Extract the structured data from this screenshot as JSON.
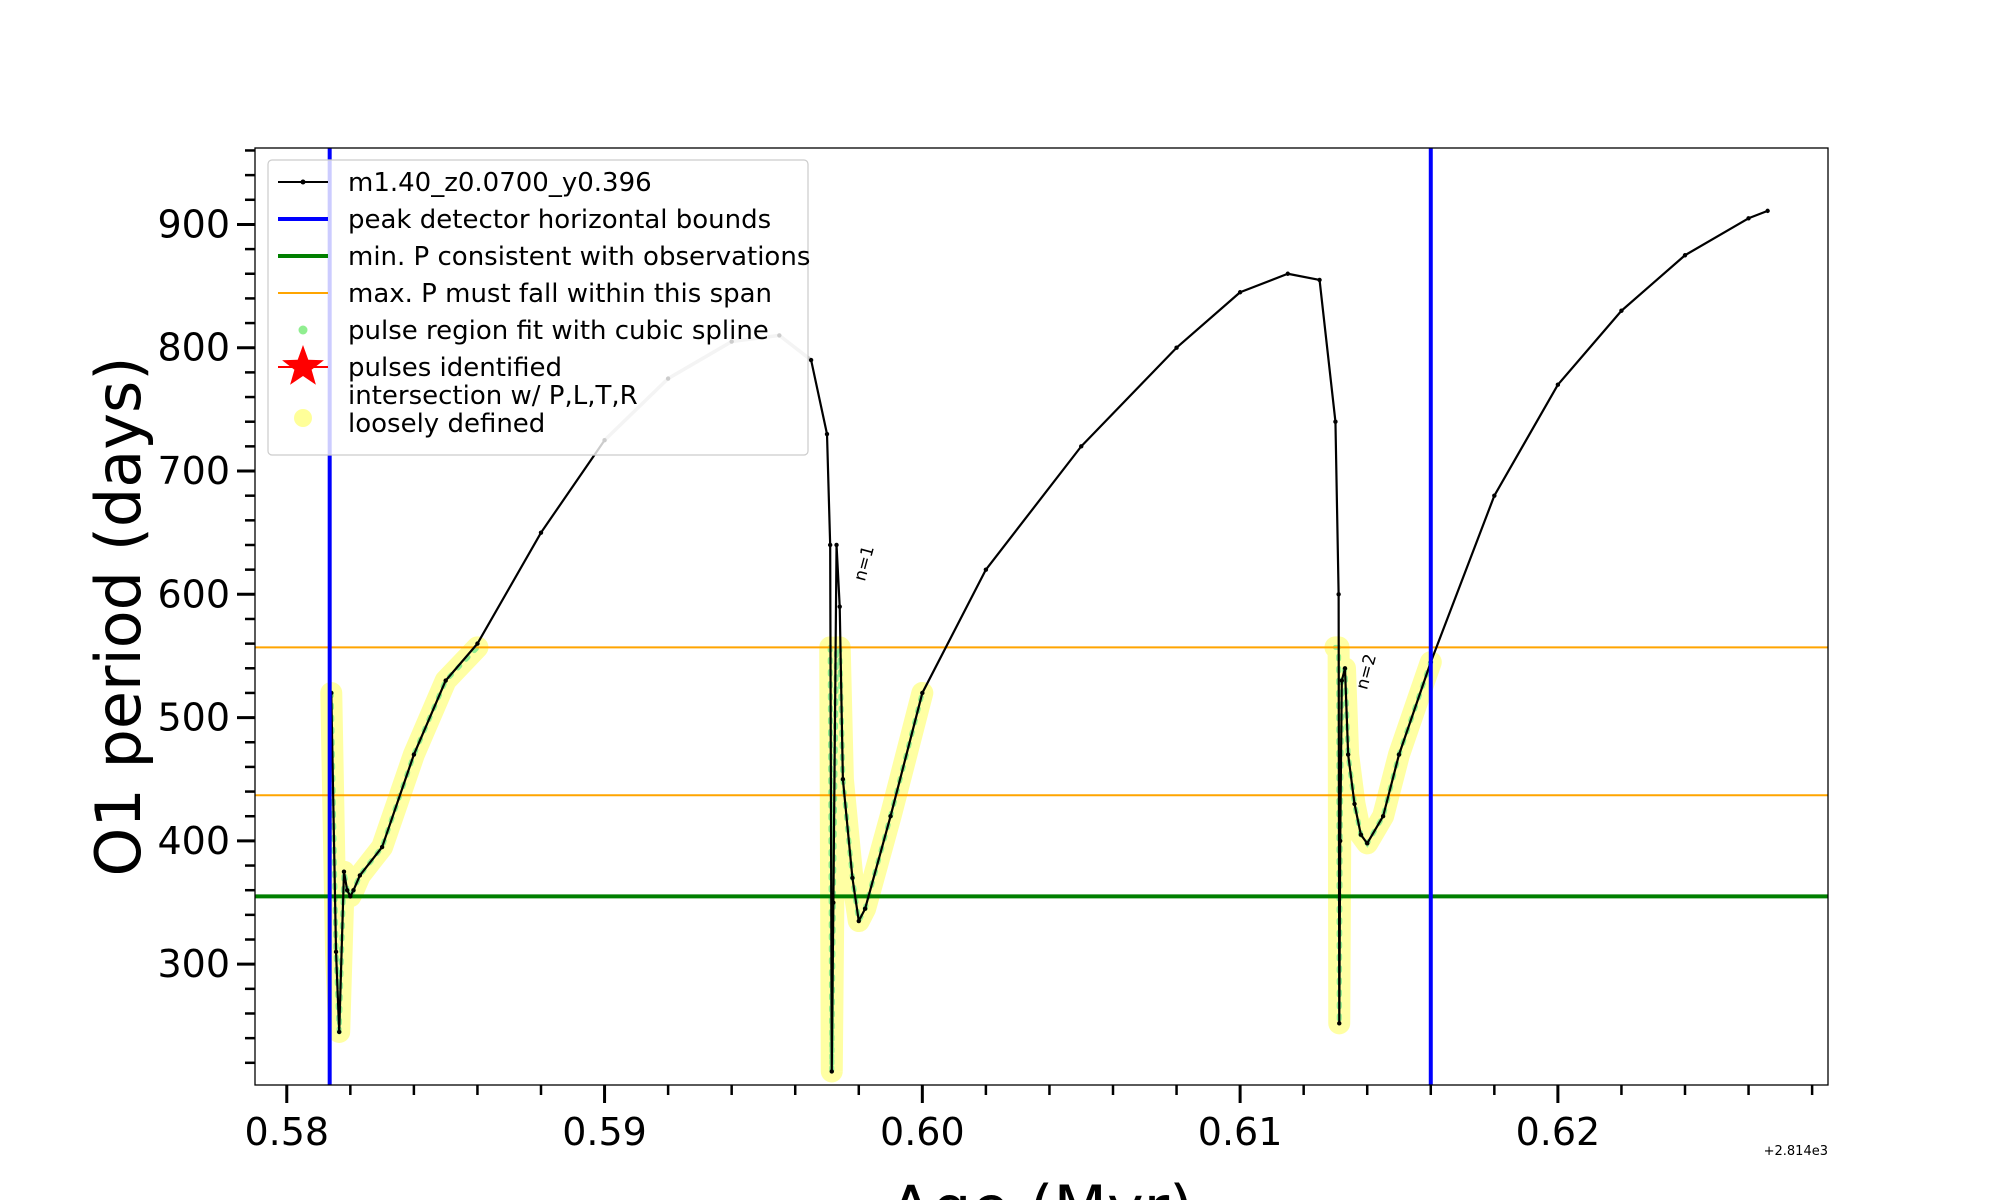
{
  "chart_data": {
    "type": "line",
    "xlabel": "Age (Myr)",
    "ylabel": "O1 period (days)",
    "xlim": [
      0.579,
      0.6285
    ],
    "ylim": [
      202,
      962
    ],
    "x_ticks": [
      0.58,
      0.59,
      0.6,
      0.61,
      0.62
    ],
    "x_tick_labels": [
      "0.58",
      "0.59",
      "0.60",
      "0.61",
      "0.62"
    ],
    "y_ticks": [
      300,
      400,
      500,
      600,
      700,
      800,
      900
    ],
    "y_tick_labels": [
      "300",
      "400",
      "500",
      "600",
      "700",
      "800",
      "900"
    ],
    "x_offset_label": "+2.814e3",
    "colors": {
      "track": "#000000",
      "track_faded": "#c8c8c8",
      "bounds": "#0000ff",
      "min_period": "#007f00",
      "span": "#ffa500",
      "spline": "#90ee90",
      "intersection": "#ffff99",
      "star": "#ff0000"
    },
    "series": [
      {
        "name": "m1.40_z0.0700_y0.396",
        "x": [
          0.5814,
          0.58155,
          0.58165,
          0.5818,
          0.5819,
          0.582,
          0.5821,
          0.5823,
          0.583,
          0.584,
          0.585,
          0.586,
          0.588,
          0.59,
          0.592,
          0.594,
          0.5955,
          0.5965,
          0.597,
          0.5971,
          0.59715,
          0.5972,
          0.5973,
          0.5974,
          0.5975,
          0.5978,
          0.598,
          0.5982,
          0.599,
          0.6,
          0.602,
          0.605,
          0.608,
          0.61,
          0.6115,
          0.6125,
          0.613,
          0.6131,
          0.61312,
          0.61315,
          0.6132,
          0.6133,
          0.6134,
          0.6136,
          0.6138,
          0.614,
          0.6145,
          0.615,
          0.616,
          0.618,
          0.62,
          0.622,
          0.624,
          0.626,
          0.6266
        ],
        "y": [
          520,
          310,
          245,
          375,
          360,
          355,
          360,
          372,
          395,
          470,
          530,
          560,
          650,
          725,
          775,
          805,
          810,
          790,
          730,
          640,
          213,
          350,
          640,
          590,
          450,
          370,
          335,
          345,
          420,
          520,
          620,
          720,
          800,
          845,
          860,
          855,
          740,
          600,
          252,
          400,
          530,
          540,
          470,
          430,
          405,
          398,
          420,
          470,
          545,
          680,
          770,
          830,
          875,
          905,
          911
        ]
      }
    ],
    "vlines": {
      "name": "peak detector horizontal bounds",
      "x": [
        0.58135,
        0.616
      ]
    },
    "hline_min": {
      "name": "min. P consistent with observations",
      "y": 355
    },
    "hline_span": {
      "name": "max. P must fall within this span",
      "y": [
        437,
        557
      ]
    },
    "spline_regions": {
      "name": "pulse region fit with cubic spline",
      "x_ranges": [
        [
          0.5814,
          0.586
        ],
        [
          0.5971,
          0.6015
        ],
        [
          0.613,
          0.616
        ]
      ]
    },
    "pulses": {
      "name": "pulses identified",
      "points": []
    },
    "intersection": {
      "name": "intersection w/ P,L,T,R",
      "name_line2": "loosely defined"
    },
    "annotations": [
      {
        "text": "n=1",
        "x": 0.598,
        "y": 610
      },
      {
        "text": "n=2",
        "x": 0.6138,
        "y": 522
      }
    ],
    "legend_position": "upper left"
  }
}
